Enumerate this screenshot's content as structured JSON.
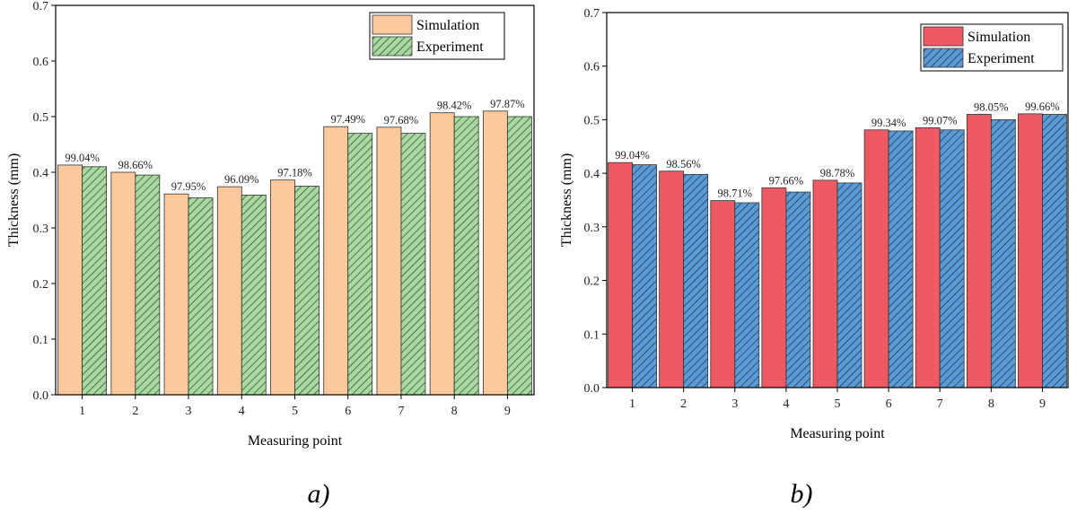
{
  "chart_data": [
    {
      "type": "bar",
      "panel": "a)",
      "xlabel": "Measuring point",
      "ylabel": "Thickness (mm)",
      "ylim": [
        0,
        0.7
      ],
      "yticks": [
        "0.0",
        "0.1",
        "0.2",
        "0.3",
        "0.4",
        "0.5",
        "0.6",
        "0.7"
      ],
      "categories": [
        "1",
        "2",
        "3",
        "4",
        "5",
        "6",
        "7",
        "8",
        "9"
      ],
      "legend_position": "top-right",
      "series": [
        {
          "name": "Simulation",
          "color": "#fcc89c",
          "hatch": false,
          "values": [
            0.413,
            0.4,
            0.361,
            0.374,
            0.386,
            0.482,
            0.481,
            0.507,
            0.51
          ]
        },
        {
          "name": "Experiment",
          "color": "#a9d9a1",
          "hatch": true,
          "values": [
            0.41,
            0.395,
            0.354,
            0.359,
            0.375,
            0.47,
            0.47,
            0.5,
            0.5
          ]
        }
      ],
      "annotations": [
        "99.04%",
        "98.66%",
        "97.95%",
        "96.09%",
        "97.18%",
        "97.49%",
        "97.68%",
        "98.42%",
        "97.87%"
      ]
    },
    {
      "type": "bar",
      "panel": "b)",
      "xlabel": "Measuring point",
      "ylabel": "Thickness (mm)",
      "ylim": [
        0,
        0.7
      ],
      "yticks": [
        "0.0",
        "0.1",
        "0.2",
        "0.3",
        "0.4",
        "0.5",
        "0.6",
        "0.7"
      ],
      "categories": [
        "1",
        "2",
        "3",
        "4",
        "5",
        "6",
        "7",
        "8",
        "9"
      ],
      "legend_position": "top-right",
      "series": [
        {
          "name": "Simulation",
          "color": "#ee5a63",
          "hatch": false,
          "values": [
            0.42,
            0.404,
            0.349,
            0.373,
            0.387,
            0.481,
            0.485,
            0.51,
            0.511
          ]
        },
        {
          "name": "Experiment",
          "color": "#5b9bd5",
          "hatch": true,
          "values": [
            0.416,
            0.398,
            0.345,
            0.365,
            0.382,
            0.479,
            0.481,
            0.5,
            0.51
          ]
        }
      ],
      "annotations": [
        "99.04%",
        "98.56%",
        "98.71%",
        "97.66%",
        "98.78%",
        "99.34%",
        "99.07%",
        "98.05%",
        "99.66%"
      ]
    }
  ]
}
